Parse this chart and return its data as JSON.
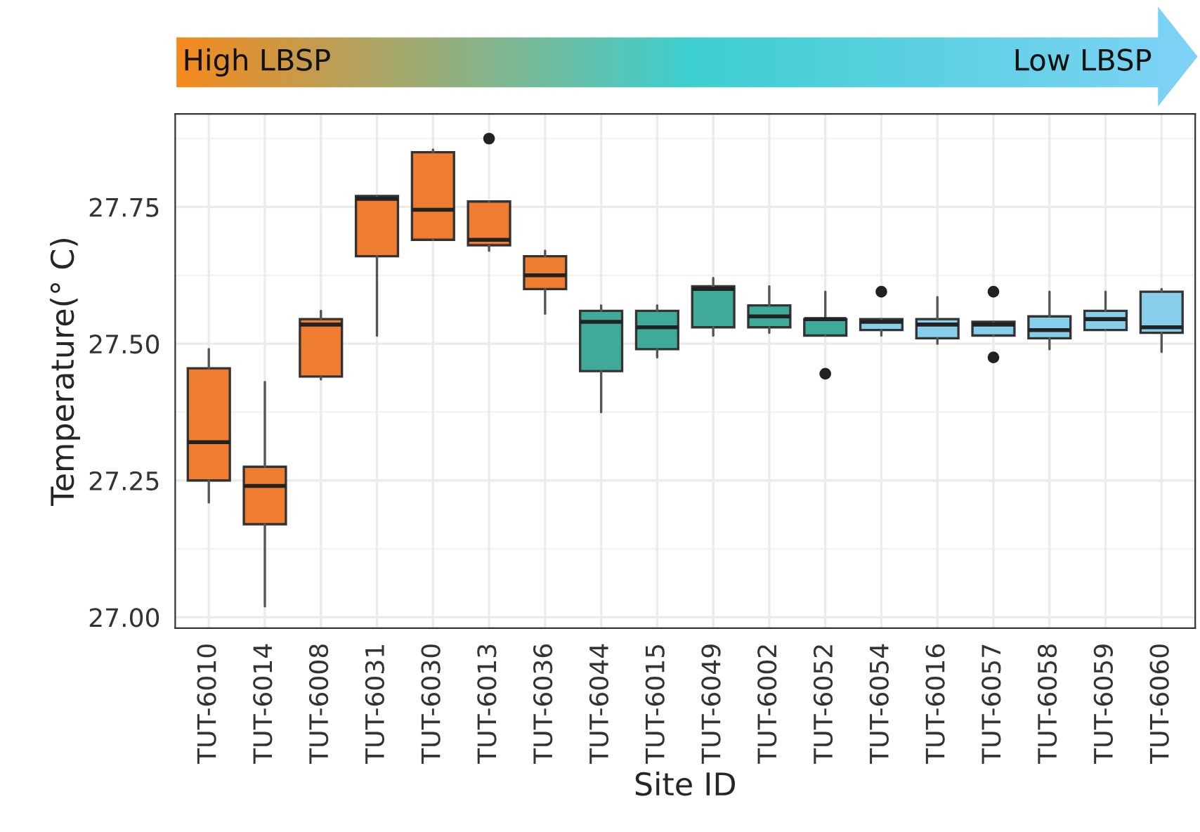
{
  "chart_data": {
    "type": "box",
    "xlabel": "Site ID",
    "ylabel": "Temperature(° C)",
    "annotations": [
      "High LBSP",
      "Low LBSP"
    ],
    "categories": [
      "TUT-6010",
      "TUT-6014",
      "TUT-6008",
      "TUT-6031",
      "TUT-6030",
      "TUT-6013",
      "TUT-6036",
      "TUT-6044",
      "TUT-6015",
      "TUT-6049",
      "TUT-6002",
      "TUT-6052",
      "TUT-6054",
      "TUT-6016",
      "TUT-6057",
      "TUT-6058",
      "TUT-6059",
      "TUT-6060"
    ],
    "colors": [
      "#ee7d31",
      "#ee7d31",
      "#ee7d31",
      "#ee7d31",
      "#ee7d31",
      "#ee7d31",
      "#ee7d31",
      "#3fa99a",
      "#3fa99a",
      "#3fa99a",
      "#3fa99a",
      "#3fa99a",
      "#87ceeb",
      "#87ceeb",
      "#87ceeb",
      "#87ceeb",
      "#87ceeb",
      "#87ceeb"
    ],
    "boxes": [
      {
        "low": 27.21,
        "q1": 27.25,
        "median": 27.32,
        "q3": 27.455,
        "high": 27.49
      },
      {
        "low": 27.02,
        "q1": 27.17,
        "median": 27.24,
        "q3": 27.275,
        "high": 27.43
      },
      {
        "low": 27.435,
        "q1": 27.44,
        "median": 27.535,
        "q3": 27.545,
        "high": 27.56
      },
      {
        "low": 27.515,
        "q1": 27.66,
        "median": 27.765,
        "q3": 27.77,
        "high": 27.77
      },
      {
        "low": 27.69,
        "q1": 27.69,
        "median": 27.745,
        "q3": 27.85,
        "high": 27.855
      },
      {
        "low": 27.67,
        "q1": 27.68,
        "median": 27.69,
        "q3": 27.76,
        "high": 27.76,
        "outliers": [
          27.875
        ]
      },
      {
        "low": 27.555,
        "q1": 27.6,
        "median": 27.625,
        "q3": 27.66,
        "high": 27.67
      },
      {
        "low": 27.375,
        "q1": 27.45,
        "median": 27.54,
        "q3": 27.56,
        "high": 27.57
      },
      {
        "low": 27.475,
        "q1": 27.49,
        "median": 27.53,
        "q3": 27.56,
        "high": 27.57
      },
      {
        "low": 27.515,
        "q1": 27.53,
        "median": 27.6,
        "q3": 27.605,
        "high": 27.62
      },
      {
        "low": 27.52,
        "q1": 27.53,
        "median": 27.55,
        "q3": 27.57,
        "high": 27.605
      },
      {
        "low": 27.515,
        "q1": 27.515,
        "median": 27.545,
        "q3": 27.545,
        "high": 27.595,
        "outliers": [
          27.445
        ]
      },
      {
        "low": 27.515,
        "q1": 27.525,
        "median": 27.54,
        "q3": 27.545,
        "high": 27.545,
        "outliers": [
          27.595
        ]
      },
      {
        "low": 27.5,
        "q1": 27.51,
        "median": 27.535,
        "q3": 27.545,
        "high": 27.585
      },
      {
        "low": 27.515,
        "q1": 27.515,
        "median": 27.535,
        "q3": 27.54,
        "high": 27.54,
        "outliers": [
          27.595,
          27.475
        ]
      },
      {
        "low": 27.49,
        "q1": 27.51,
        "median": 27.525,
        "q3": 27.55,
        "high": 27.595
      },
      {
        "low": 27.525,
        "q1": 27.525,
        "median": 27.545,
        "q3": 27.56,
        "high": 27.595
      },
      {
        "low": 27.485,
        "q1": 27.52,
        "median": 27.53,
        "q3": 27.595,
        "high": 27.6
      }
    ],
    "ylim": [
      26.98,
      27.92
    ],
    "yticks": [
      {
        "value": 27.0,
        "label": "27.00"
      },
      {
        "value": 27.25,
        "label": "27.25"
      },
      {
        "value": 27.5,
        "label": "27.50"
      },
      {
        "value": 27.75,
        "label": "27.75"
      }
    ],
    "grid": true
  }
}
